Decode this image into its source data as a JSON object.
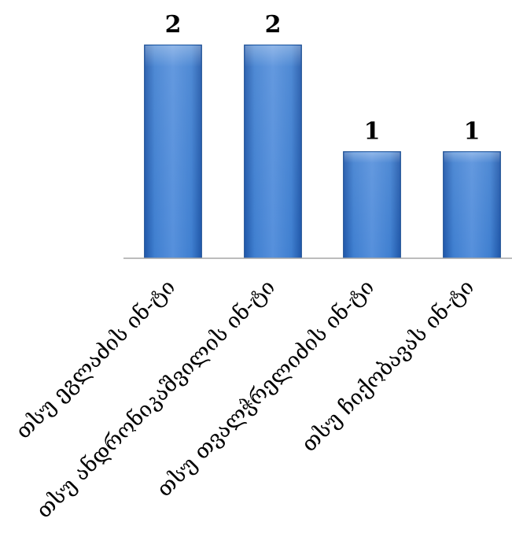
{
  "chart_data": {
    "type": "bar",
    "categories": [
      "თსუ ეგლაძის ინ-ტი",
      "თსუ ანდრონიკაშვილის ინ-ტი",
      "თსუ თვალჭრელიძის ინ-ტი",
      "თსუ ჩიქობავას ინ-ტი"
    ],
    "values": [
      2,
      2,
      1,
      1
    ],
    "value_labels": [
      "2",
      "2",
      "1",
      "1"
    ],
    "title": "",
    "xlabel": "",
    "ylabel": "",
    "ylim": [
      0,
      2.0
    ],
    "grid": false,
    "legend": "none",
    "bar_color": "#3a78c9",
    "bar_edge_color": "#1f4f8f",
    "axis_color": "#a6a6a6"
  }
}
